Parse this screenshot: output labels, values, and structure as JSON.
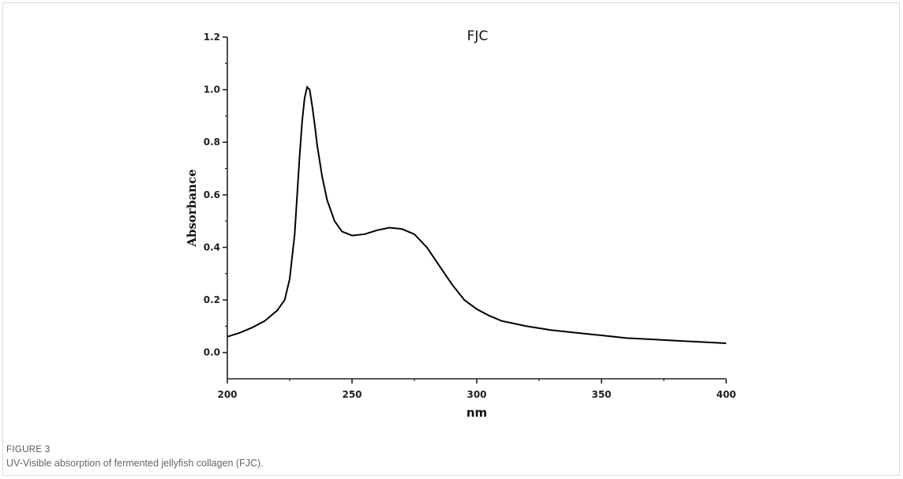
{
  "figure": {
    "number": "FIGURE 3",
    "caption": "UV-Visible absorption of fermented jellyfish collagen (FJC)."
  },
  "colors": {
    "line": "#000000",
    "axis": "#222222",
    "caption_text": "#666666"
  },
  "chart_data": {
    "type": "line",
    "title": "FJC",
    "xlabel": "nm",
    "ylabel": "Absorbance",
    "xlim": [
      200,
      400
    ],
    "ylim": [
      -0.1,
      1.2
    ],
    "xticks": [
      200,
      250,
      300,
      350,
      400
    ],
    "xtick_labels": [
      "200",
      "250",
      "300",
      "350",
      "400"
    ],
    "yticks": [
      0.0,
      0.2,
      0.4,
      0.6,
      0.8,
      1.0,
      1.2
    ],
    "ytick_labels": [
      "0.0",
      "0.2",
      "0.4",
      "0.6",
      "0.8",
      "1.0",
      "1.2"
    ],
    "grid": false,
    "series": [
      {
        "x": [
          200,
          205,
          210,
          215,
          220,
          223,
          225,
          227,
          228,
          229,
          230,
          231,
          232,
          233,
          234,
          235,
          236,
          238,
          240,
          243,
          246,
          250,
          255,
          260,
          265,
          270,
          275,
          280,
          285,
          290,
          295,
          300,
          305,
          310,
          320,
          330,
          340,
          350,
          360,
          370,
          380,
          390,
          400
        ],
        "y": [
          0.06,
          0.075,
          0.095,
          0.12,
          0.16,
          0.2,
          0.28,
          0.45,
          0.6,
          0.75,
          0.88,
          0.97,
          1.01,
          1.0,
          0.94,
          0.87,
          0.79,
          0.67,
          0.58,
          0.5,
          0.46,
          0.445,
          0.45,
          0.465,
          0.475,
          0.47,
          0.45,
          0.4,
          0.33,
          0.26,
          0.2,
          0.165,
          0.14,
          0.12,
          0.1,
          0.085,
          0.075,
          0.065,
          0.055,
          0.05,
          0.045,
          0.04,
          0.035
        ]
      }
    ]
  }
}
